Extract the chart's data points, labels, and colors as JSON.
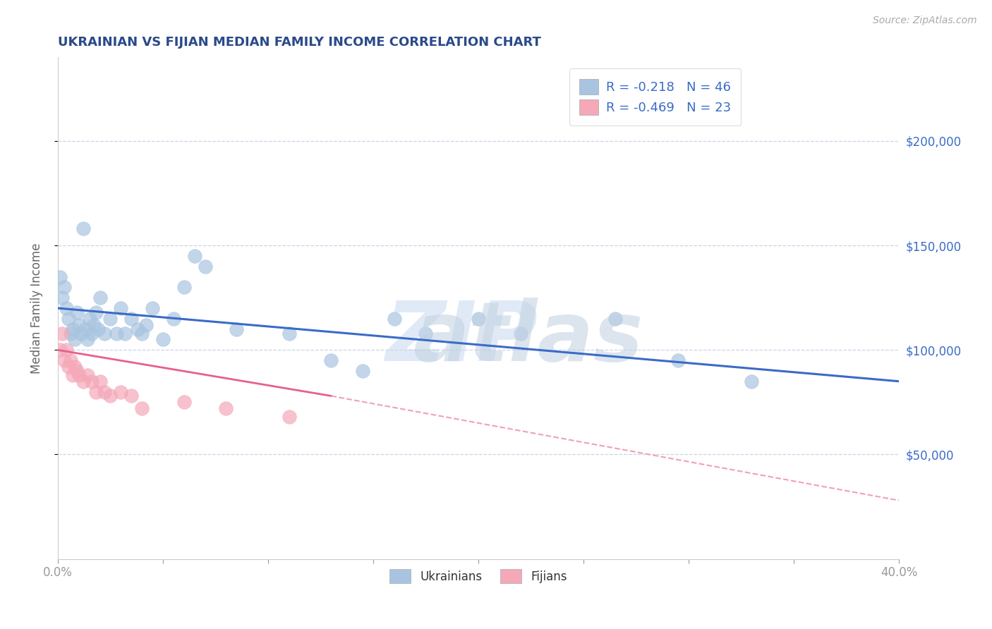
{
  "title": "UKRAINIAN VS FIJIAN MEDIAN FAMILY INCOME CORRELATION CHART",
  "source": "Source: ZipAtlas.com",
  "xlabel": "",
  "ylabel": "Median Family Income",
  "xlim": [
    0.0,
    0.4
  ],
  "ylim": [
    0,
    240000
  ],
  "ytick_labels_right": [
    "$50,000",
    "$100,000",
    "$150,000",
    "$200,000"
  ],
  "ytick_values_right": [
    50000,
    100000,
    150000,
    200000
  ],
  "blue_color": "#a8c4e0",
  "pink_color": "#f4a8b8",
  "blue_line_color": "#3a6bc8",
  "pink_line_color": "#e8608a",
  "pink_line_dashed_color": "#f0a0b8",
  "legend_R1": "R = -0.218",
  "legend_N1": "N = 46",
  "legend_R2": "R = -0.469",
  "legend_N2": "N = 23",
  "ukrainians_x": [
    0.001,
    0.002,
    0.003,
    0.004,
    0.005,
    0.006,
    0.007,
    0.008,
    0.009,
    0.01,
    0.011,
    0.012,
    0.013,
    0.014,
    0.015,
    0.016,
    0.017,
    0.018,
    0.019,
    0.02,
    0.022,
    0.025,
    0.028,
    0.03,
    0.032,
    0.035,
    0.038,
    0.04,
    0.042,
    0.045,
    0.05,
    0.055,
    0.06,
    0.065,
    0.07,
    0.085,
    0.11,
    0.13,
    0.145,
    0.16,
    0.175,
    0.2,
    0.22,
    0.265,
    0.295,
    0.33
  ],
  "ukrainians_y": [
    135000,
    125000,
    130000,
    120000,
    115000,
    108000,
    110000,
    105000,
    118000,
    112000,
    108000,
    158000,
    110000,
    105000,
    115000,
    108000,
    112000,
    118000,
    110000,
    125000,
    108000,
    115000,
    108000,
    120000,
    108000,
    115000,
    110000,
    108000,
    112000,
    120000,
    105000,
    115000,
    130000,
    145000,
    140000,
    110000,
    108000,
    95000,
    90000,
    115000,
    108000,
    115000,
    108000,
    115000,
    95000,
    85000
  ],
  "fijians_x": [
    0.001,
    0.002,
    0.003,
    0.004,
    0.005,
    0.006,
    0.007,
    0.008,
    0.009,
    0.01,
    0.012,
    0.014,
    0.016,
    0.018,
    0.02,
    0.022,
    0.025,
    0.03,
    0.035,
    0.04,
    0.06,
    0.08,
    0.11
  ],
  "fijians_y": [
    100000,
    108000,
    95000,
    100000,
    92000,
    95000,
    88000,
    92000,
    90000,
    88000,
    85000,
    88000,
    85000,
    80000,
    85000,
    80000,
    78000,
    80000,
    78000,
    72000,
    75000,
    72000,
    68000
  ],
  "background_color": "#ffffff",
  "grid_color": "#c8d4e8",
  "title_color": "#2a4a8a",
  "axis_label_color": "#666666",
  "watermark_color_zip": "#c8d8f0",
  "watermark_color_atlas": "#c0d0e0"
}
